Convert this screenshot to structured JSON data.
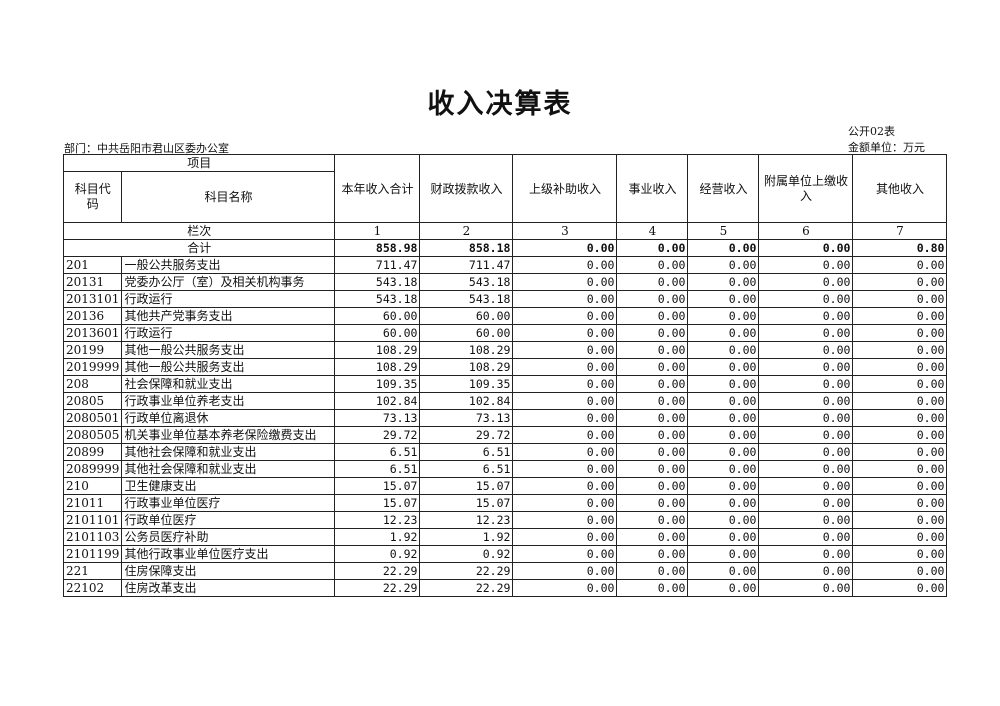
{
  "title": "收入决算表",
  "department": "部门：中共岳阳市君山区委办公室",
  "form_no": "公开02表",
  "unit": "金额单位：万元",
  "header": {
    "item": "项目",
    "code": "科目代码",
    "name": "科目名称",
    "columns": [
      "本年收入合计",
      "财政拨款收入",
      "上级补助收入",
      "事业收入",
      "经营收入",
      "附属单位上缴收入",
      "其他收入"
    ],
    "row_index_label": "栏次",
    "row_index": [
      "1",
      "2",
      "3",
      "4",
      "5",
      "6",
      "7"
    ]
  },
  "total": {
    "label": "合计",
    "values": [
      "858.98",
      "858.18",
      "0.00",
      "0.00",
      "0.00",
      "0.00",
      "0.80"
    ]
  },
  "rows": [
    {
      "code": "201",
      "name": "一般公共服务支出",
      "values": [
        "711.47",
        "711.47",
        "0.00",
        "0.00",
        "0.00",
        "0.00",
        "0.00"
      ]
    },
    {
      "code": "20131",
      "name": "党委办公厅（室）及相关机构事务",
      "values": [
        "543.18",
        "543.18",
        "0.00",
        "0.00",
        "0.00",
        "0.00",
        "0.00"
      ]
    },
    {
      "code": "2013101",
      "name": "行政运行",
      "values": [
        "543.18",
        "543.18",
        "0.00",
        "0.00",
        "0.00",
        "0.00",
        "0.00"
      ]
    },
    {
      "code": "20136",
      "name": "其他共产党事务支出",
      "values": [
        "60.00",
        "60.00",
        "0.00",
        "0.00",
        "0.00",
        "0.00",
        "0.00"
      ]
    },
    {
      "code": "2013601",
      "name": "行政运行",
      "values": [
        "60.00",
        "60.00",
        "0.00",
        "0.00",
        "0.00",
        "0.00",
        "0.00"
      ]
    },
    {
      "code": "20199",
      "name": "其他一般公共服务支出",
      "values": [
        "108.29",
        "108.29",
        "0.00",
        "0.00",
        "0.00",
        "0.00",
        "0.00"
      ]
    },
    {
      "code": "2019999",
      "name": "其他一般公共服务支出",
      "values": [
        "108.29",
        "108.29",
        "0.00",
        "0.00",
        "0.00",
        "0.00",
        "0.00"
      ]
    },
    {
      "code": "208",
      "name": "社会保障和就业支出",
      "values": [
        "109.35",
        "109.35",
        "0.00",
        "0.00",
        "0.00",
        "0.00",
        "0.00"
      ]
    },
    {
      "code": "20805",
      "name": "行政事业单位养老支出",
      "values": [
        "102.84",
        "102.84",
        "0.00",
        "0.00",
        "0.00",
        "0.00",
        "0.00"
      ]
    },
    {
      "code": "2080501",
      "name": "行政单位离退休",
      "values": [
        "73.13",
        "73.13",
        "0.00",
        "0.00",
        "0.00",
        "0.00",
        "0.00"
      ]
    },
    {
      "code": "2080505",
      "name": "机关事业单位基本养老保险缴费支出",
      "values": [
        "29.72",
        "29.72",
        "0.00",
        "0.00",
        "0.00",
        "0.00",
        "0.00"
      ]
    },
    {
      "code": "20899",
      "name": "其他社会保障和就业支出",
      "values": [
        "6.51",
        "6.51",
        "0.00",
        "0.00",
        "0.00",
        "0.00",
        "0.00"
      ]
    },
    {
      "code": "2089999",
      "name": "其他社会保障和就业支出",
      "values": [
        "6.51",
        "6.51",
        "0.00",
        "0.00",
        "0.00",
        "0.00",
        "0.00"
      ]
    },
    {
      "code": "210",
      "name": "卫生健康支出",
      "values": [
        "15.07",
        "15.07",
        "0.00",
        "0.00",
        "0.00",
        "0.00",
        "0.00"
      ]
    },
    {
      "code": "21011",
      "name": "行政事业单位医疗",
      "values": [
        "15.07",
        "15.07",
        "0.00",
        "0.00",
        "0.00",
        "0.00",
        "0.00"
      ]
    },
    {
      "code": "2101101",
      "name": "行政单位医疗",
      "values": [
        "12.23",
        "12.23",
        "0.00",
        "0.00",
        "0.00",
        "0.00",
        "0.00"
      ]
    },
    {
      "code": "2101103",
      "name": "公务员医疗补助",
      "values": [
        "1.92",
        "1.92",
        "0.00",
        "0.00",
        "0.00",
        "0.00",
        "0.00"
      ]
    },
    {
      "code": "2101199",
      "name": "其他行政事业单位医疗支出",
      "values": [
        "0.92",
        "0.92",
        "0.00",
        "0.00",
        "0.00",
        "0.00",
        "0.00"
      ]
    },
    {
      "code": "221",
      "name": "住房保障支出",
      "values": [
        "22.29",
        "22.29",
        "0.00",
        "0.00",
        "0.00",
        "0.00",
        "0.00"
      ]
    },
    {
      "code": "22102",
      "name": "住房改革支出",
      "values": [
        "22.29",
        "22.29",
        "0.00",
        "0.00",
        "0.00",
        "0.00",
        "0.00"
      ]
    }
  ]
}
